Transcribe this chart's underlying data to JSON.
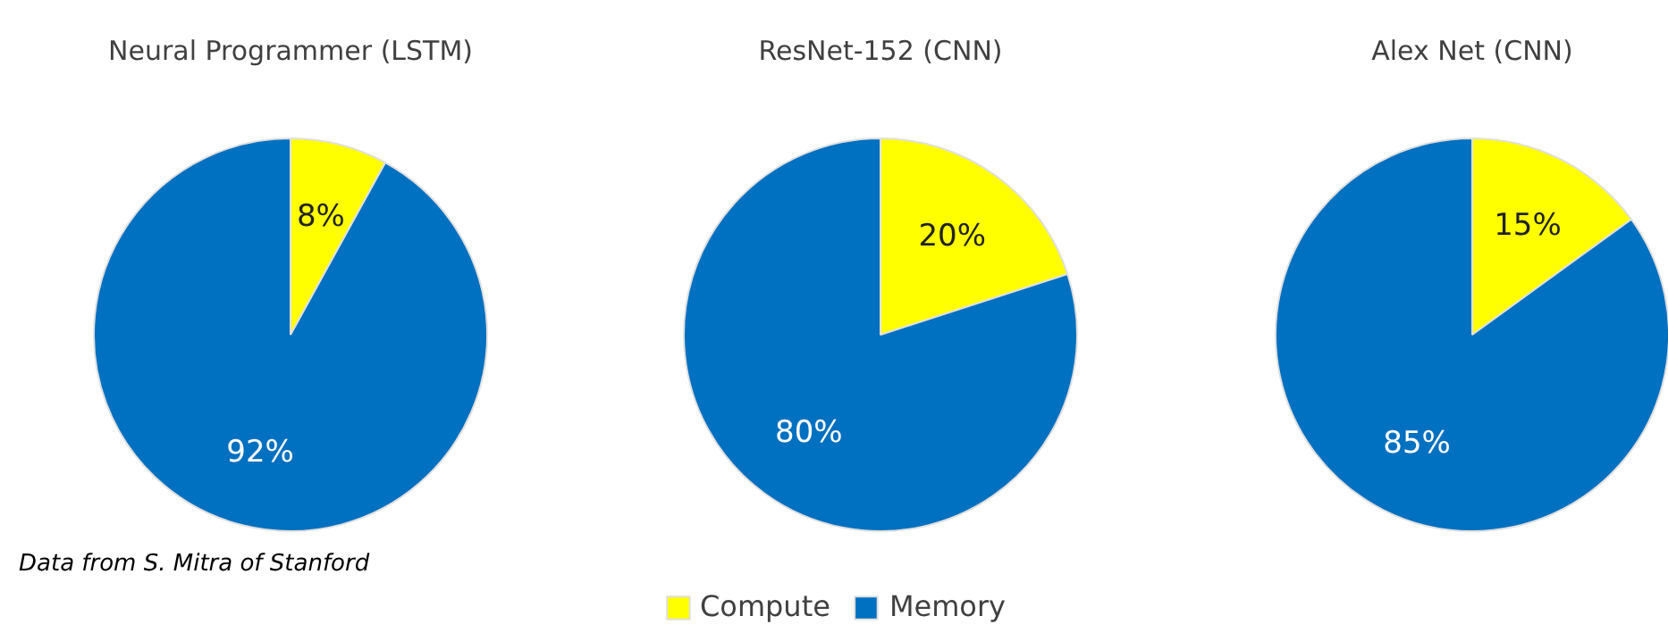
{
  "chart_data": [
    {
      "type": "pie",
      "title": "Neural Programmer (LSTM)",
      "categories": [
        "Compute",
        "Memory"
      ],
      "values": [
        8,
        92
      ],
      "colors": [
        "#ffff00",
        "#0070c0"
      ],
      "value_labels": [
        "8%",
        "92%"
      ],
      "legend": "bottom",
      "annotations": [
        "Data from S. Mitra of Stanford"
      ]
    },
    {
      "type": "pie",
      "title": "ResNet-152 (CNN)",
      "categories": [
        null,
        null
      ],
      "values": [
        20,
        80
      ],
      "colors": [
        "#ffff00",
        "#0070c0"
      ],
      "value_labels": [
        "20%",
        "80%"
      ]
    },
    {
      "type": "pie",
      "title": "Alex Net (CNN)",
      "categories": [
        null,
        null
      ],
      "values": [
        15,
        85
      ],
      "colors": [
        "#ffff00",
        "#0070c0"
      ],
      "value_labels": [
        "15%",
        "85%"
      ]
    }
  ]
}
